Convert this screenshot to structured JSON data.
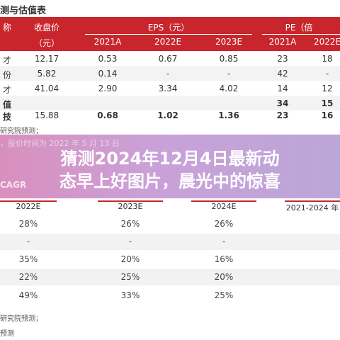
{
  "top_table": {
    "title": "测与估值表",
    "headers": {
      "col0": "称",
      "price": "收盘价",
      "price_unit": "（元）",
      "eps": "EPS（元）",
      "pe": "PE（倍",
      "years_eps": [
        "2021A",
        "2022E",
        "2023E"
      ],
      "years_pe": [
        "2021A",
        "2022E"
      ]
    },
    "rows": [
      {
        "name": "才",
        "price": "12.17",
        "v1": "0.53",
        "v2": "0.67",
        "v3": "0.85",
        "pe1": "23",
        "pe2": "18"
      },
      {
        "name": "份",
        "price": "5.82",
        "v1": "0.14",
        "v2": "-",
        "v3": "-",
        "pe1": "42",
        "pe2": "-"
      },
      {
        "name": "才",
        "price": "41.04",
        "v1": "2.90",
        "v2": "3.34",
        "v3": "4.02",
        "pe1": "14",
        "pe2": "12"
      },
      {
        "name": "值",
        "price": "",
        "v1": "",
        "v2": "",
        "v3": "",
        "pe1": "34",
        "pe2": "15"
      },
      {
        "name": "技",
        "price": "15.88",
        "v1": "0.68",
        "v2": "1.02",
        "v3": "1.36",
        "pe1": "23",
        "pe2": "16"
      }
    ],
    "footnote1": "研究院预测；",
    "footnote2": "，股价时间为 2022 年 5 月 13 日"
  },
  "overlay": {
    "title_line1": "猜测2024年12月4日最新动",
    "title_line2": "态早上好图片，晨光中的惊喜",
    "faint_text": "研究院预测",
    "cagr_text": "CAGR"
  },
  "bottom_table": {
    "headers": [
      "2022E",
      "2023E",
      "2024E",
      "2021-2024 年"
    ],
    "rows": [
      {
        "c1": "28%",
        "c2": "26%",
        "c3": "26%"
      },
      {
        "c1": "-",
        "c2": "-",
        "c3": "-"
      },
      {
        "c1": "35%",
        "c2": "20%",
        "c3": "16%"
      },
      {
        "c1": "22%",
        "c2": "25%",
        "c3": "20%"
      },
      {
        "c1": "49%",
        "c2": "33%",
        "c3": "25%"
      }
    ],
    "footnote1": "研究院预测；",
    "footnote2": "预测"
  },
  "colors": {
    "header_red": "#c8262c",
    "overlay_start": "#d98fbd",
    "overlay_end": "#bba6d8"
  }
}
